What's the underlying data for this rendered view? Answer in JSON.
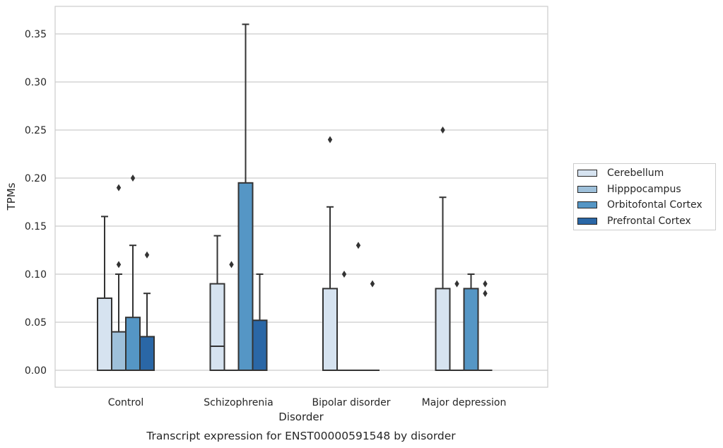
{
  "chart_data": {
    "type": "box",
    "title": "",
    "caption": "Transcript expression for ENST00000591548 by disorder",
    "xlabel": "Disorder",
    "ylabel": "TPMs",
    "ylim": [
      -0.0175,
      0.378
    ],
    "yticks": [
      0.0,
      0.05,
      0.1,
      0.15,
      0.2,
      0.25,
      0.3,
      0.35
    ],
    "ytick_labels": [
      "0.00",
      "0.05",
      "0.10",
      "0.15",
      "0.20",
      "0.25",
      "0.30",
      "0.35"
    ],
    "grid": "horizontal",
    "legend_position": "right",
    "categories": [
      "Control",
      "Schizophrenia",
      "Bipolar disorder",
      "Major depression"
    ],
    "series": [
      {
        "name": "Cerebellum",
        "color": "#d6e3f0",
        "boxes": [
          {
            "low": 0.0,
            "q1": 0.0,
            "median": 0.0,
            "q3": 0.075,
            "high": 0.16,
            "outliers": []
          },
          {
            "low": 0.0,
            "q1": 0.0,
            "median": 0.025,
            "q3": 0.09,
            "high": 0.14,
            "outliers": []
          },
          {
            "low": 0.0,
            "q1": 0.0,
            "median": 0.0,
            "q3": 0.085,
            "high": 0.17,
            "outliers": [
              0.24
            ]
          },
          {
            "low": 0.0,
            "q1": 0.0,
            "median": 0.0,
            "q3": 0.085,
            "high": 0.18,
            "outliers": [
              0.25
            ]
          }
        ]
      },
      {
        "name": "Hipppocampus",
        "color": "#9ec0da",
        "boxes": [
          {
            "low": 0.0,
            "q1": 0.0,
            "median": 0.0,
            "q3": 0.04,
            "high": 0.1,
            "outliers": [
              0.11,
              0.19
            ]
          },
          {
            "low": 0.0,
            "q1": 0.0,
            "median": 0.0,
            "q3": 0.0,
            "high": 0.0,
            "outliers": [
              0.11
            ]
          },
          {
            "low": 0.0,
            "q1": 0.0,
            "median": 0.0,
            "q3": 0.0,
            "high": 0.0,
            "outliers": [
              0.1
            ]
          },
          {
            "low": 0.0,
            "q1": 0.0,
            "median": 0.0,
            "q3": 0.0,
            "high": 0.0,
            "outliers": [
              0.09
            ]
          }
        ]
      },
      {
        "name": "Orbitofontal Cortex",
        "color": "#5596c5",
        "boxes": [
          {
            "low": 0.0,
            "q1": 0.0,
            "median": 0.0,
            "q3": 0.055,
            "high": 0.13,
            "outliers": [
              0.2
            ]
          },
          {
            "low": 0.0,
            "q1": 0.0,
            "median": 0.0,
            "q3": 0.195,
            "high": 0.36,
            "outliers": []
          },
          {
            "low": 0.0,
            "q1": 0.0,
            "median": 0.0,
            "q3": 0.0,
            "high": 0.0,
            "outliers": [
              0.13
            ]
          },
          {
            "low": 0.0,
            "q1": 0.0,
            "median": 0.0,
            "q3": 0.085,
            "high": 0.1,
            "outliers": []
          }
        ]
      },
      {
        "name": "Prefrontal Cortex",
        "color": "#2a67a6",
        "boxes": [
          {
            "low": 0.0,
            "q1": 0.0,
            "median": 0.0,
            "q3": 0.035,
            "high": 0.08,
            "outliers": [
              0.12
            ]
          },
          {
            "low": 0.0,
            "q1": 0.0,
            "median": 0.0,
            "q3": 0.052,
            "high": 0.1,
            "outliers": []
          },
          {
            "low": 0.0,
            "q1": 0.0,
            "median": 0.0,
            "q3": 0.0,
            "high": 0.0,
            "outliers": [
              0.09
            ]
          },
          {
            "low": 0.0,
            "q1": 0.0,
            "median": 0.0,
            "q3": 0.0,
            "high": 0.0,
            "outliers": [
              0.08,
              0.09
            ]
          }
        ]
      }
    ]
  }
}
